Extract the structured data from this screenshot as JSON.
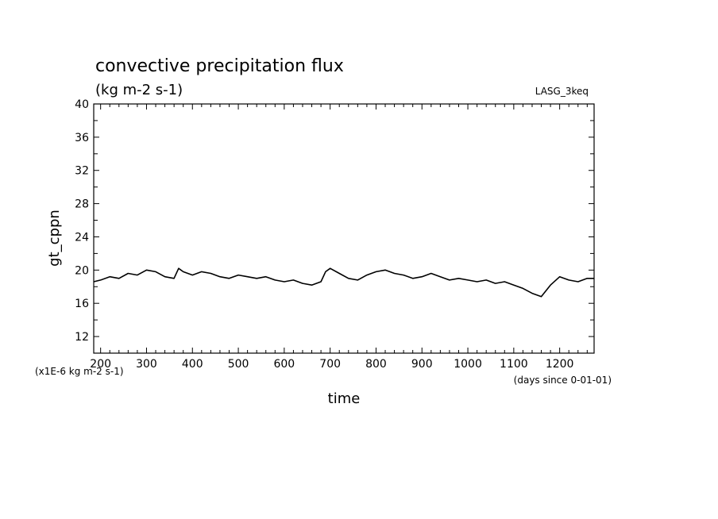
{
  "chart_data": {
    "type": "line",
    "title": "convective precipitation flux",
    "subtitle": "(kg m-2 s-1)",
    "run_label": "LASG_3keq",
    "xlabel": "time",
    "ylabel": "gt_cppn",
    "y_units_note": "(x1E-6 kg m-2 s-1)",
    "x_units_note": "(days since 0-01-01)",
    "xlim": [
      185,
      1275
    ],
    "ylim": [
      10,
      40
    ],
    "x_ticks": [
      200,
      300,
      400,
      500,
      600,
      700,
      800,
      900,
      1000,
      1100,
      1200
    ],
    "y_ticks": [
      12,
      16,
      20,
      24,
      28,
      32,
      36,
      40
    ],
    "grid": false,
    "line_color": "#000000",
    "series": [
      {
        "x": [
          185,
          200,
          220,
          240,
          260,
          280,
          300,
          320,
          340,
          360,
          370,
          380,
          400,
          420,
          440,
          460,
          480,
          500,
          520,
          540,
          560,
          580,
          600,
          620,
          640,
          660,
          680,
          690,
          700,
          720,
          740,
          760,
          780,
          800,
          820,
          840,
          860,
          880,
          900,
          920,
          940,
          960,
          980,
          1000,
          1020,
          1040,
          1060,
          1080,
          1100,
          1120,
          1140,
          1160,
          1180,
          1200,
          1220,
          1240,
          1260,
          1275
        ],
        "y": [
          18.6,
          18.8,
          19.2,
          19.0,
          19.6,
          19.4,
          20.0,
          19.8,
          19.2,
          19.0,
          20.2,
          19.8,
          19.4,
          19.8,
          19.6,
          19.2,
          19.0,
          19.4,
          19.2,
          19.0,
          19.2,
          18.8,
          18.6,
          18.8,
          18.4,
          18.2,
          18.6,
          19.8,
          20.2,
          19.6,
          19.0,
          18.8,
          19.4,
          19.8,
          20.0,
          19.6,
          19.4,
          19.0,
          19.2,
          19.6,
          19.2,
          18.8,
          19.0,
          18.8,
          18.6,
          18.8,
          18.4,
          18.6,
          18.2,
          17.8,
          17.2,
          16.8,
          18.2,
          19.2,
          18.8,
          18.6,
          19.0,
          19.0
        ]
      }
    ]
  }
}
